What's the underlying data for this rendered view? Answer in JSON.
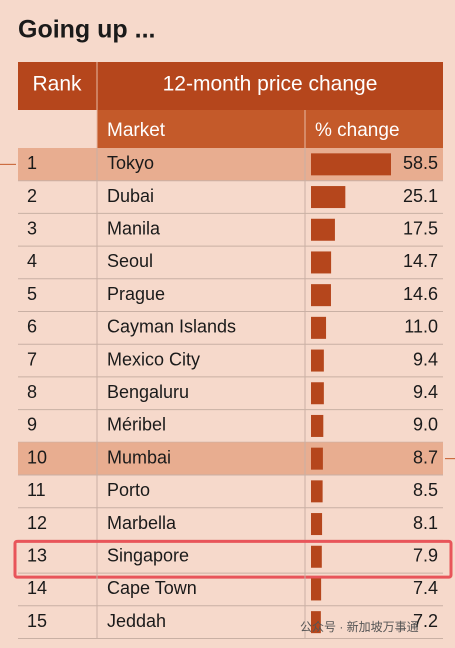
{
  "chart_data": {
    "type": "bar",
    "orientation": "horizontal",
    "title": "Going up ...",
    "header": {
      "rank": "Rank",
      "group": "12-month price change",
      "market": "Market",
      "change": "% change"
    },
    "ranks": [
      "1",
      "2",
      "3",
      "4",
      "5",
      "6",
      "7",
      "8",
      "9",
      "10",
      "11",
      "12",
      "13",
      "14",
      "15"
    ],
    "categories": [
      "Tokyo",
      "Dubai",
      "Manila",
      "Seoul",
      "Prague",
      "Cayman Islands",
      "Mexico City",
      "Bengaluru",
      "Méribel",
      "Mumbai",
      "Porto",
      "Marbella",
      "Singapore",
      "Cape Town",
      "Jeddah"
    ],
    "values": [
      58.5,
      25.1,
      17.5,
      14.7,
      14.6,
      11.0,
      9.4,
      9.4,
      9.0,
      8.7,
      8.5,
      8.1,
      7.9,
      7.4,
      7.2
    ],
    "value_labels": [
      "58.5",
      "25.1",
      "17.5",
      "14.7",
      "14.6",
      "11.0",
      "9.4",
      "9.4",
      "9.0",
      "8.7",
      "8.5",
      "8.1",
      "7.9",
      "7.4",
      "7.2"
    ],
    "color": "#b5461c",
    "highlighted_rows": [
      0,
      9
    ],
    "outlined_row": 12,
    "watermark": "公众号 · 新加坡万事通"
  }
}
